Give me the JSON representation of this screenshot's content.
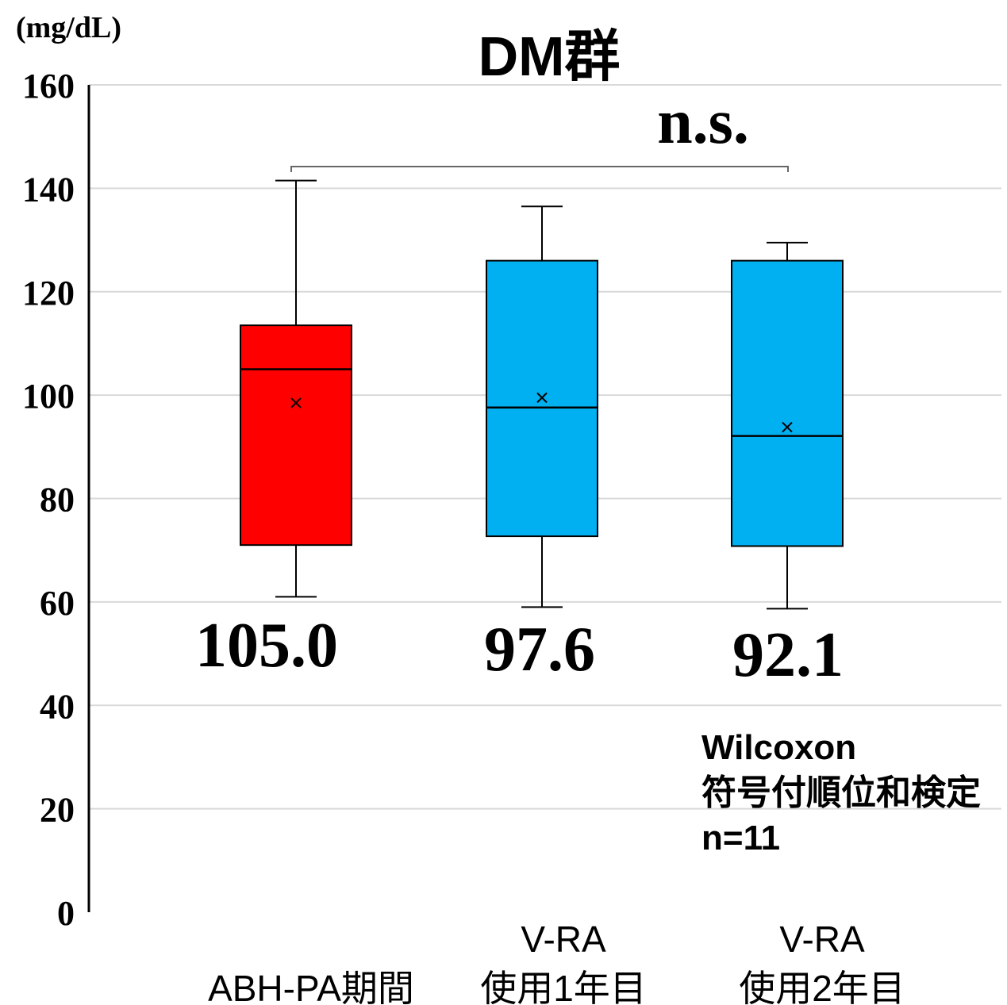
{
  "chart_data": {
    "type": "box",
    "title": "DM群",
    "ylabel": "(mg/dL)",
    "ylim": [
      0,
      160
    ],
    "yticks": [
      "0",
      "20",
      "40",
      "60",
      "80",
      "100",
      "120",
      "140",
      "160"
    ],
    "grid": true,
    "categories": [
      {
        "lines": [
          "",
          "ABH-PA期間"
        ],
        "color": "#ff0000"
      },
      {
        "lines": [
          "V-RA",
          "使用1年目"
        ],
        "color": "#00b0f0"
      },
      {
        "lines": [
          "V-RA",
          "使用2年目"
        ],
        "color": "#00b0f0"
      }
    ],
    "boxes": [
      {
        "min": 61,
        "q1": 71,
        "median": 105.0,
        "q3": 113.5,
        "max": 141.5,
        "mean": 98.5
      },
      {
        "min": 59,
        "q1": 72.7,
        "median": 97.6,
        "q3": 126,
        "max": 136.5,
        "mean": 99.5
      },
      {
        "min": 58.7,
        "q1": 70.8,
        "median": 92.1,
        "q3": 126,
        "max": 129.5,
        "mean": 93.8
      }
    ],
    "median_labels": [
      "105.0",
      "97.6",
      "92.1"
    ],
    "significance": {
      "label": "n.s.",
      "from": 0,
      "to": 2
    },
    "note_lines": [
      "Wilcoxon",
      "符号付順位和検定",
      "n=11"
    ]
  }
}
